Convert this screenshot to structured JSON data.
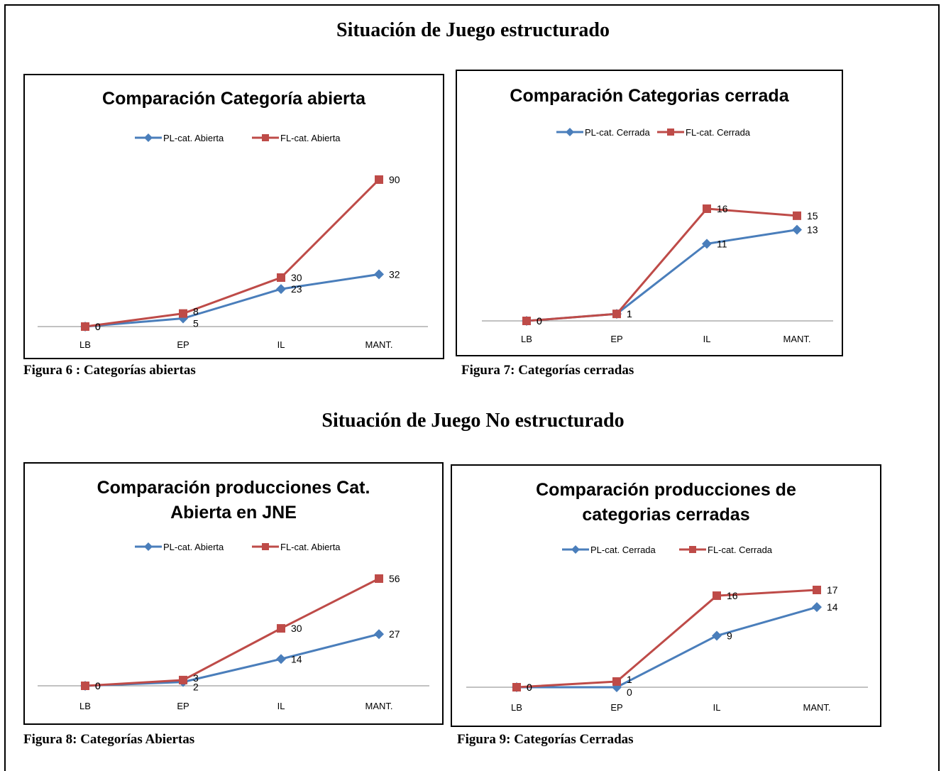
{
  "section_titles": {
    "structured": "Situación de Juego estructurado",
    "unstructured": "Situación de Juego No estructurado"
  },
  "captions": {
    "fig6": "Figura 6 : Categorías  abiertas",
    "fig7": "Figura 7: Categorías cerradas",
    "fig8": "Figura 8: Categorías  Abiertas",
    "fig9": "Figura 9: Categorías Cerradas"
  },
  "colors": {
    "pl": "#4A7EBB",
    "fl": "#BE4B48"
  },
  "chart_data": [
    {
      "type": "line",
      "title": "Comparación Categoría abierta",
      "categories": [
        "LB",
        "EP",
        "IL",
        "MANT."
      ],
      "series": [
        {
          "name": "PL-cat. Abierta",
          "values": [
            0,
            5,
            23,
            32
          ],
          "marker": "diamond"
        },
        {
          "name": "FL-cat. Abierta",
          "values": [
            0,
            8,
            30,
            90
          ],
          "marker": "square"
        }
      ],
      "ylim": [
        0,
        90
      ],
      "grid": false,
      "legend_position": "top"
    },
    {
      "type": "line",
      "title": "Comparación Categorias cerrada",
      "categories": [
        "LB",
        "EP",
        "IL",
        "MANT."
      ],
      "series": [
        {
          "name": "PL-cat. Cerrada",
          "values": [
            0,
            1,
            11,
            13
          ],
          "marker": "diamond"
        },
        {
          "name": "FL-cat. Cerrada",
          "values": [
            0,
            1,
            16,
            15
          ],
          "marker": "square"
        }
      ],
      "ylim": [
        0,
        16
      ],
      "grid": false,
      "legend_position": "top"
    },
    {
      "type": "line",
      "title": "Comparación producciones Cat. Abierta en JNE",
      "categories": [
        "LB",
        "EP",
        "IL",
        "MANT."
      ],
      "series": [
        {
          "name": "PL-cat. Abierta",
          "values": [
            0,
            2,
            14,
            27
          ],
          "marker": "diamond"
        },
        {
          "name": "FL-cat. Abierta",
          "values": [
            0,
            3,
            30,
            56
          ],
          "marker": "square"
        }
      ],
      "ylim": [
        0,
        56
      ],
      "grid": false,
      "legend_position": "top"
    },
    {
      "type": "line",
      "title": "Comparación producciones de categorias cerradas",
      "categories": [
        "LB",
        "EP",
        "IL",
        "MANT."
      ],
      "series": [
        {
          "name": "PL-cat. Cerrada",
          "values": [
            0,
            0,
            9,
            14
          ],
          "marker": "diamond"
        },
        {
          "name": "FL-cat. Cerrada",
          "values": [
            0,
            1,
            16,
            17
          ],
          "marker": "square"
        }
      ],
      "ylim": [
        0,
        17
      ],
      "grid": false,
      "legend_position": "top"
    }
  ]
}
